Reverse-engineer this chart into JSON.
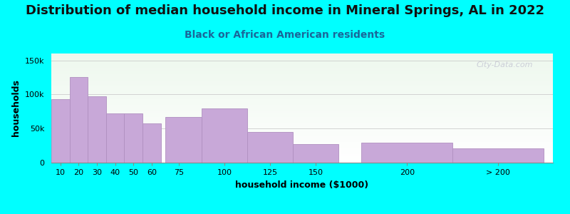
{
  "title": "Distribution of median household income in Mineral Springs, AL in 2022",
  "subtitle": "Black or African American residents",
  "xlabel": "household income ($1000)",
  "ylabel": "households",
  "bg_color": "#00FFFF",
  "bar_color": "#c8a8d8",
  "bar_edge_color": "#b090c0",
  "categories": [
    "10",
    "20",
    "30",
    "40",
    "50",
    "60",
    "75",
    "100",
    "125",
    "150",
    "200",
    "> 200"
  ],
  "values": [
    93000,
    125000,
    97000,
    72000,
    72000,
    57000,
    67000,
    80000,
    45000,
    27000,
    29000,
    21000
  ],
  "bin_lefts": [
    5,
    15,
    25,
    35,
    45,
    55,
    67.5,
    87.5,
    112.5,
    137.5,
    175,
    225
  ],
  "bin_widths": [
    10,
    10,
    10,
    10,
    10,
    10,
    20,
    25,
    25,
    25,
    50,
    50
  ],
  "xlim": [
    5,
    280
  ],
  "xtick_positions": [
    10,
    20,
    30,
    40,
    50,
    60,
    75,
    100,
    125,
    150,
    200,
    250
  ],
  "xtick_labels": [
    "10",
    "20",
    "30",
    "40",
    "50",
    "60",
    "75",
    "100",
    "125",
    "150",
    "200",
    "> 200"
  ],
  "ylim": [
    0,
    160000
  ],
  "yticks": [
    0,
    50000,
    100000,
    150000
  ],
  "ytick_labels": [
    "0",
    "50k",
    "100k",
    "150k"
  ],
  "title_fontsize": 13,
  "subtitle_fontsize": 10,
  "axis_label_fontsize": 9,
  "tick_fontsize": 8,
  "watermark_text": "City-Data.com"
}
